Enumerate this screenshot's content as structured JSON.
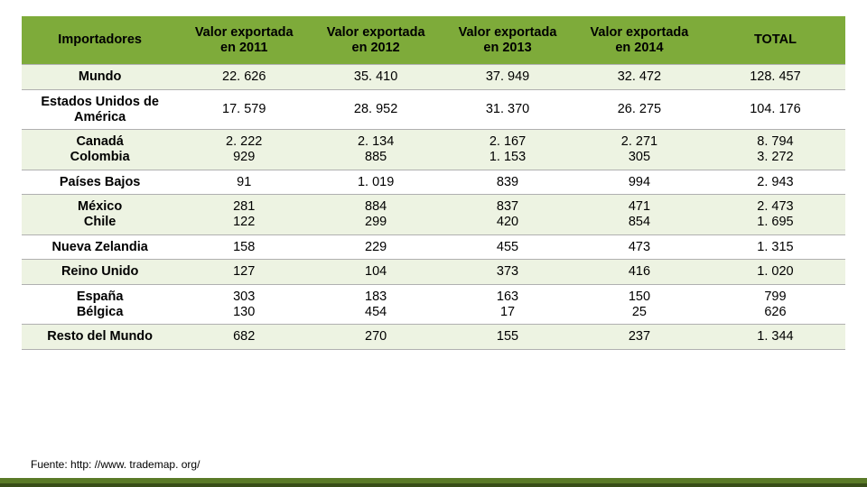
{
  "table": {
    "header_bg": "#7eab3a",
    "row_even_bg": "#edf3e2",
    "row_odd_bg": "#ffffff",
    "font_size_pt": 11,
    "header_font_size_pt": 11,
    "columns": [
      {
        "key": "importer",
        "label_line1": "Importadores",
        "label_line2": ""
      },
      {
        "key": "v2011",
        "label_line1": "Valor exportada",
        "label_line2": "en 2011"
      },
      {
        "key": "v2012",
        "label_line1": "Valor exportada",
        "label_line2": "en 2012"
      },
      {
        "key": "v2013",
        "label_line1": "Valor exportada",
        "label_line2": "en 2013"
      },
      {
        "key": "v2014",
        "label_line1": "Valor exportada",
        "label_line2": "en 2014"
      },
      {
        "key": "total",
        "label_line1": "TOTAL",
        "label_line2": ""
      }
    ],
    "rows": [
      {
        "stack": false,
        "labels": [
          "Mundo"
        ],
        "v2011": [
          "22. 626"
        ],
        "v2012": [
          "35. 410"
        ],
        "v2013": [
          "37. 949"
        ],
        "v2014": [
          "32. 472"
        ],
        "total": [
          "128. 457"
        ]
      },
      {
        "stack": false,
        "labels": [
          "Estados Unidos de América"
        ],
        "v2011": [
          "17. 579"
        ],
        "v2012": [
          "28. 952"
        ],
        "v2013": [
          "31. 370"
        ],
        "v2014": [
          "26. 275"
        ],
        "total": [
          "104. 176"
        ]
      },
      {
        "stack": true,
        "labels": [
          "Canadá",
          "Colombia"
        ],
        "v2011": [
          "2. 222",
          "929"
        ],
        "v2012": [
          "2. 134",
          "885"
        ],
        "v2013": [
          "2. 167",
          "1. 153"
        ],
        "v2014": [
          "2. 271",
          "305"
        ],
        "total": [
          "8. 794",
          "3. 272"
        ]
      },
      {
        "stack": false,
        "labels": [
          "Países Bajos"
        ],
        "v2011": [
          "91"
        ],
        "v2012": [
          "1. 019"
        ],
        "v2013": [
          "839"
        ],
        "v2014": [
          "994"
        ],
        "total": [
          "2. 943"
        ]
      },
      {
        "stack": true,
        "labels": [
          "México",
          "Chile"
        ],
        "v2011": [
          "281",
          "122"
        ],
        "v2012": [
          "884",
          "299"
        ],
        "v2013": [
          "837",
          "420"
        ],
        "v2014": [
          "471",
          "854"
        ],
        "total": [
          "2. 473",
          "1. 695"
        ]
      },
      {
        "stack": false,
        "labels": [
          "Nueva Zelandia"
        ],
        "v2011": [
          "158"
        ],
        "v2012": [
          "229"
        ],
        "v2013": [
          "455"
        ],
        "v2014": [
          "473"
        ],
        "total": [
          "1. 315"
        ]
      },
      {
        "stack": false,
        "labels": [
          "Reino Unido"
        ],
        "v2011": [
          "127"
        ],
        "v2012": [
          "104"
        ],
        "v2013": [
          "373"
        ],
        "v2014": [
          "416"
        ],
        "total": [
          "1. 020"
        ]
      },
      {
        "stack": true,
        "labels": [
          "España",
          "Bélgica"
        ],
        "v2011": [
          "303",
          "130"
        ],
        "v2012": [
          "183",
          "454"
        ],
        "v2013": [
          "163",
          "17"
        ],
        "v2014": [
          "150",
          "25"
        ],
        "total": [
          "799",
          "626"
        ]
      },
      {
        "stack": false,
        "labels": [
          "Resto del Mundo"
        ],
        "v2011": [
          "682"
        ],
        "v2012": [
          "270"
        ],
        "v2013": [
          "155"
        ],
        "v2014": [
          "237"
        ],
        "total": [
          "1. 344"
        ]
      }
    ]
  },
  "source_label": "Fuente: http: //www. trademap. org/",
  "footer_colors": {
    "strip1": "#5a7a27",
    "strip2": "#384d18"
  }
}
